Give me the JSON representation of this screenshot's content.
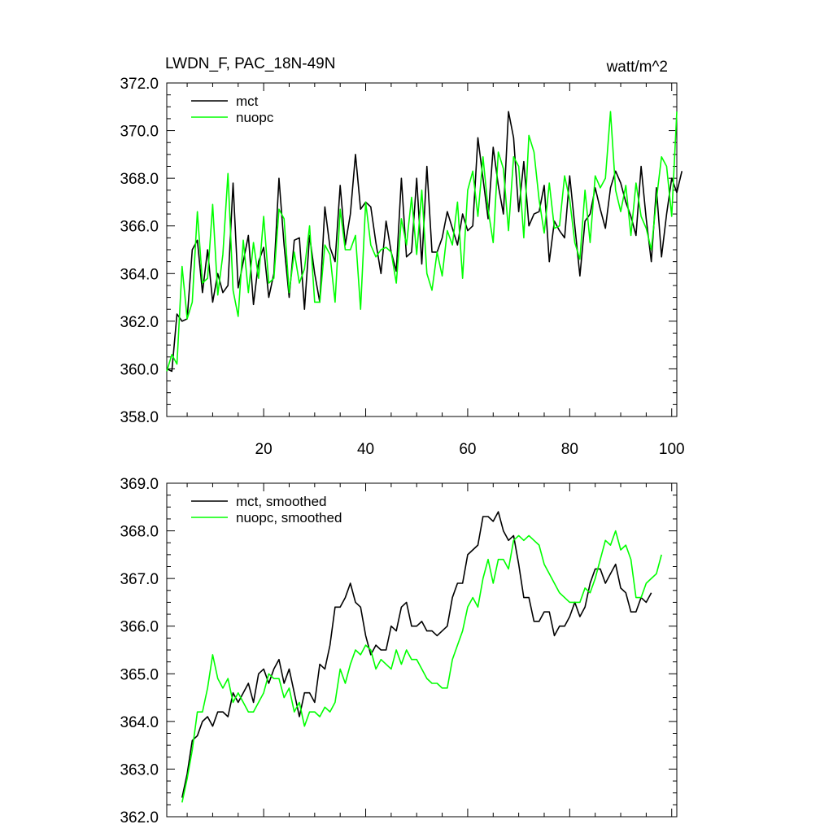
{
  "page": {
    "title_left": "LWDN_F, PAC_18N-49N",
    "title_right": "watt/m^2"
  },
  "chart_data": [
    {
      "type": "line",
      "title": "LWDN_F, PAC_18N-49N",
      "units": "watt/m^2",
      "xlim": [
        1,
        101
      ],
      "ylim": [
        358,
        372
      ],
      "x_ticks": [
        20,
        40,
        60,
        80,
        100
      ],
      "x_tick_labels": [
        "20",
        "40",
        "60",
        "80",
        "100"
      ],
      "y_ticks": [
        358,
        360,
        362,
        364,
        366,
        368,
        370,
        372
      ],
      "y_tick_labels": [
        "358.0",
        "360.0",
        "362.0",
        "364.0",
        "366.0",
        "368.0",
        "370.0",
        "372.0"
      ],
      "legend_position": "top-left",
      "x_start": 1,
      "series": [
        {
          "name": "mct",
          "color": "#000000",
          "values": [
            360.0,
            359.9,
            362.3,
            362.0,
            362.1,
            365.0,
            365.4,
            363.2,
            365.0,
            362.8,
            364.0,
            363.2,
            363.5,
            367.8,
            363.4,
            364.5,
            365.6,
            362.7,
            364.5,
            365.1,
            363.0,
            364.0,
            368.0,
            365.2,
            363.0,
            365.4,
            365.5,
            362.5,
            365.6,
            364.0,
            362.8,
            366.8,
            365.1,
            364.5,
            367.7,
            365.2,
            366.5,
            369.0,
            366.7,
            367.0,
            366.8,
            365.3,
            364.0,
            366.2,
            364.9,
            364.1,
            368.0,
            364.7,
            364.9,
            368.0,
            364.4,
            368.5,
            364.9,
            364.9,
            365.5,
            366.6,
            365.9,
            365.2,
            366.5,
            365.8,
            366.0,
            369.7,
            368.0,
            366.3,
            369.3,
            367.7,
            366.5,
            370.8,
            369.7,
            366.6,
            368.7,
            366.0,
            366.5,
            366.6,
            367.7,
            364.5,
            366.2,
            365.8,
            365.5,
            368.1,
            366.0,
            363.9,
            366.2,
            366.5,
            367.6,
            366.7,
            365.9,
            367.6,
            368.3,
            367.8,
            367.0,
            366.4,
            365.6,
            368.5,
            366.3,
            364.5,
            367.6,
            364.7,
            366.5,
            368.0,
            367.4,
            368.3
          ]
        },
        {
          "name": "nuopc",
          "color": "#00ff00",
          "values": [
            359.9,
            360.6,
            360.2,
            364.3,
            362.1,
            362.8,
            366.6,
            363.6,
            363.8,
            366.9,
            363.1,
            364.8,
            368.2,
            363.3,
            362.2,
            365.4,
            363.2,
            365.3,
            363.8,
            366.4,
            363.6,
            363.8,
            366.7,
            366.3,
            363.2,
            364.9,
            363.6,
            364.2,
            366.0,
            362.8,
            362.8,
            365.2,
            364.8,
            362.8,
            366.7,
            365.0,
            365.0,
            365.6,
            362.5,
            367.0,
            365.2,
            364.7,
            365.0,
            365.1,
            364.9,
            363.6,
            366.3,
            365.2,
            367.2,
            364.8,
            367.5,
            364.0,
            363.3,
            364.9,
            363.9,
            365.8,
            365.2,
            367.0,
            363.8,
            367.5,
            368.3,
            366.4,
            368.9,
            366.7,
            365.3,
            369.1,
            368.4,
            365.8,
            368.9,
            368.5,
            365.5,
            369.8,
            369.1,
            367.1,
            365.7,
            367.8,
            365.9,
            366.0,
            368.1,
            367.1,
            365.3,
            364.6,
            367.5,
            365.3,
            368.1,
            367.6,
            368.0,
            370.8,
            367.5,
            366.6,
            367.7,
            365.6,
            367.8,
            366.4,
            365.9,
            365.0,
            367.1,
            368.9,
            368.5,
            366.4,
            370.8
          ]
        }
      ]
    },
    {
      "type": "line",
      "xlim": [
        1,
        101
      ],
      "ylim": [
        362,
        369
      ],
      "y_ticks": [
        362,
        363,
        364,
        365,
        366,
        367,
        368,
        369
      ],
      "y_tick_labels": [
        "362.0",
        "363.0",
        "364.0",
        "365.0",
        "366.0",
        "367.0",
        "368.0",
        "369.0"
      ],
      "x_ticks": [
        20,
        40,
        60,
        80,
        100
      ],
      "legend_position": "top-left",
      "x_start": 4,
      "series": [
        {
          "name": "mct, smoothed",
          "color": "#000000",
          "values": [
            362.4,
            362.9,
            363.6,
            363.7,
            364.0,
            364.1,
            363.9,
            364.2,
            364.2,
            364.1,
            364.6,
            364.4,
            364.6,
            364.8,
            364.4,
            365.0,
            365.1,
            364.8,
            365.1,
            365.3,
            364.8,
            365.1,
            364.6,
            364.1,
            364.6,
            364.6,
            364.4,
            365.2,
            365.1,
            365.6,
            366.4,
            366.4,
            366.6,
            366.9,
            366.5,
            366.4,
            365.8,
            365.4,
            365.6,
            365.5,
            365.5,
            366.0,
            365.9,
            366.4,
            366.5,
            366.0,
            366.0,
            366.1,
            365.9,
            365.9,
            365.8,
            365.9,
            366.0,
            366.6,
            366.9,
            366.9,
            367.5,
            367.6,
            367.7,
            368.3,
            368.3,
            368.2,
            368.4,
            368.0,
            367.8,
            367.9,
            367.3,
            366.6,
            366.6,
            366.1,
            366.1,
            366.3,
            366.3,
            365.8,
            366.0,
            366.0,
            366.2,
            366.5,
            366.2,
            366.4,
            366.9,
            367.2,
            367.2,
            366.9,
            367.1,
            367.3,
            366.8,
            366.7,
            366.3,
            366.3,
            366.6,
            366.5,
            366.7
          ]
        },
        {
          "name": "nuopc, smoothed",
          "color": "#00ff00",
          "values": [
            362.3,
            362.8,
            363.4,
            364.2,
            364.2,
            364.7,
            365.4,
            364.9,
            364.7,
            364.9,
            364.4,
            364.6,
            364.4,
            364.2,
            364.2,
            364.4,
            364.6,
            365.0,
            364.9,
            364.9,
            364.5,
            364.7,
            364.2,
            364.4,
            363.9,
            364.2,
            364.2,
            364.1,
            364.3,
            364.2,
            364.4,
            365.1,
            364.8,
            365.2,
            365.5,
            365.4,
            365.6,
            365.5,
            365.1,
            365.3,
            365.2,
            365.1,
            365.5,
            365.2,
            365.5,
            365.3,
            365.3,
            365.1,
            364.9,
            364.8,
            364.8,
            364.7,
            364.7,
            365.3,
            365.6,
            365.9,
            366.4,
            366.6,
            366.4,
            367.0,
            367.4,
            366.9,
            367.4,
            367.4,
            367.2,
            367.8,
            367.9,
            367.8,
            367.9,
            367.8,
            367.7,
            367.3,
            367.1,
            366.9,
            366.7,
            366.6,
            366.5,
            366.5,
            366.5,
            366.8,
            366.7,
            367.0,
            367.4,
            367.8,
            367.7,
            368.0,
            367.6,
            367.7,
            367.4,
            366.6,
            366.6,
            366.9,
            367.0,
            367.1,
            367.5
          ]
        }
      ]
    }
  ]
}
